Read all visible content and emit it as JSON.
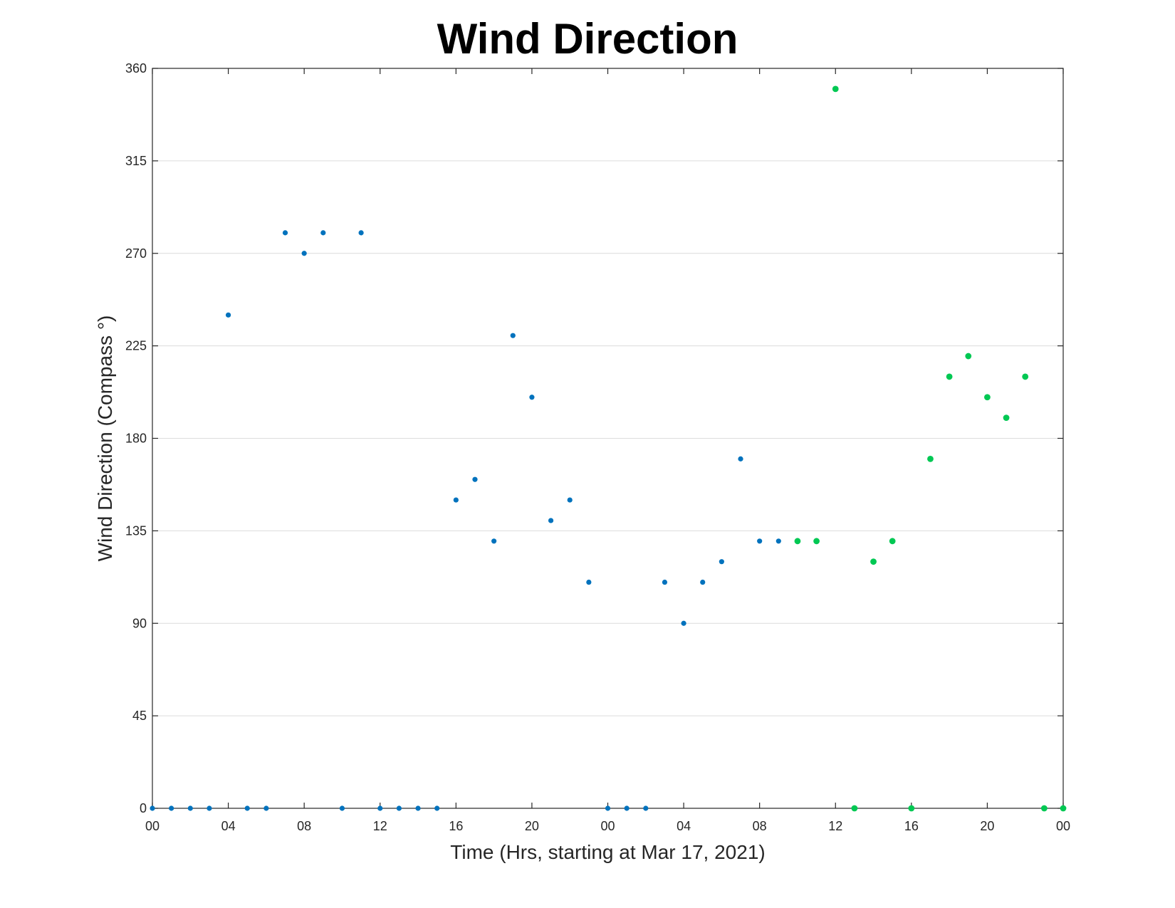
{
  "chart_data": {
    "type": "scatter",
    "title": "Wind Direction",
    "xlabel": "Time (Hrs, starting at Mar 17, 2021)",
    "ylabel": "Wind Direction (Compass °)",
    "x_unit": "hours",
    "xlim": [
      0,
      48
    ],
    "ylim": [
      0,
      360
    ],
    "yticks": [
      0,
      45,
      90,
      135,
      180,
      225,
      270,
      315,
      360
    ],
    "xticks": [
      {
        "x": 0,
        "label": "00"
      },
      {
        "x": 4,
        "label": "04"
      },
      {
        "x": 8,
        "label": "08"
      },
      {
        "x": 12,
        "label": "12"
      },
      {
        "x": 16,
        "label": "16"
      },
      {
        "x": 20,
        "label": "20"
      },
      {
        "x": 24,
        "label": "00"
      },
      {
        "x": 28,
        "label": "04"
      },
      {
        "x": 32,
        "label": "08"
      },
      {
        "x": 36,
        "label": "12"
      },
      {
        "x": 40,
        "label": "16"
      },
      {
        "x": 44,
        "label": "20"
      },
      {
        "x": 48,
        "label": "00"
      }
    ],
    "grid": "horizontal",
    "series": [
      {
        "color": "#0072bd",
        "points": [
          [
            0,
            0
          ],
          [
            1,
            0
          ],
          [
            2,
            0
          ],
          [
            3,
            0
          ],
          [
            4,
            240
          ],
          [
            5,
            0
          ],
          [
            6,
            0
          ],
          [
            7,
            280
          ],
          [
            8,
            270
          ],
          [
            9,
            280
          ],
          [
            10,
            0
          ],
          [
            11,
            280
          ],
          [
            12,
            0
          ],
          [
            13,
            0
          ],
          [
            14,
            0
          ],
          [
            15,
            0
          ],
          [
            16,
            150
          ],
          [
            17,
            160
          ],
          [
            18,
            130
          ],
          [
            19,
            230
          ],
          [
            20,
            200
          ],
          [
            21,
            140
          ],
          [
            22,
            150
          ],
          [
            23,
            110
          ],
          [
            24,
            0
          ],
          [
            25,
            0
          ],
          [
            26,
            0
          ],
          [
            27,
            110
          ],
          [
            28,
            90
          ],
          [
            29,
            110
          ],
          [
            30,
            120
          ],
          [
            31,
            170
          ],
          [
            32,
            130
          ],
          [
            33,
            130
          ]
        ]
      },
      {
        "color": "#00c853",
        "points": [
          [
            34,
            130
          ],
          [
            35,
            130
          ],
          [
            36,
            350
          ],
          [
            37,
            0
          ],
          [
            38,
            120
          ],
          [
            39,
            130
          ],
          [
            40,
            0
          ],
          [
            41,
            170
          ],
          [
            42,
            210
          ],
          [
            43,
            220
          ],
          [
            44,
            200
          ],
          [
            45,
            190
          ],
          [
            46,
            210
          ],
          [
            47,
            0
          ],
          [
            48,
            0
          ]
        ]
      }
    ]
  }
}
